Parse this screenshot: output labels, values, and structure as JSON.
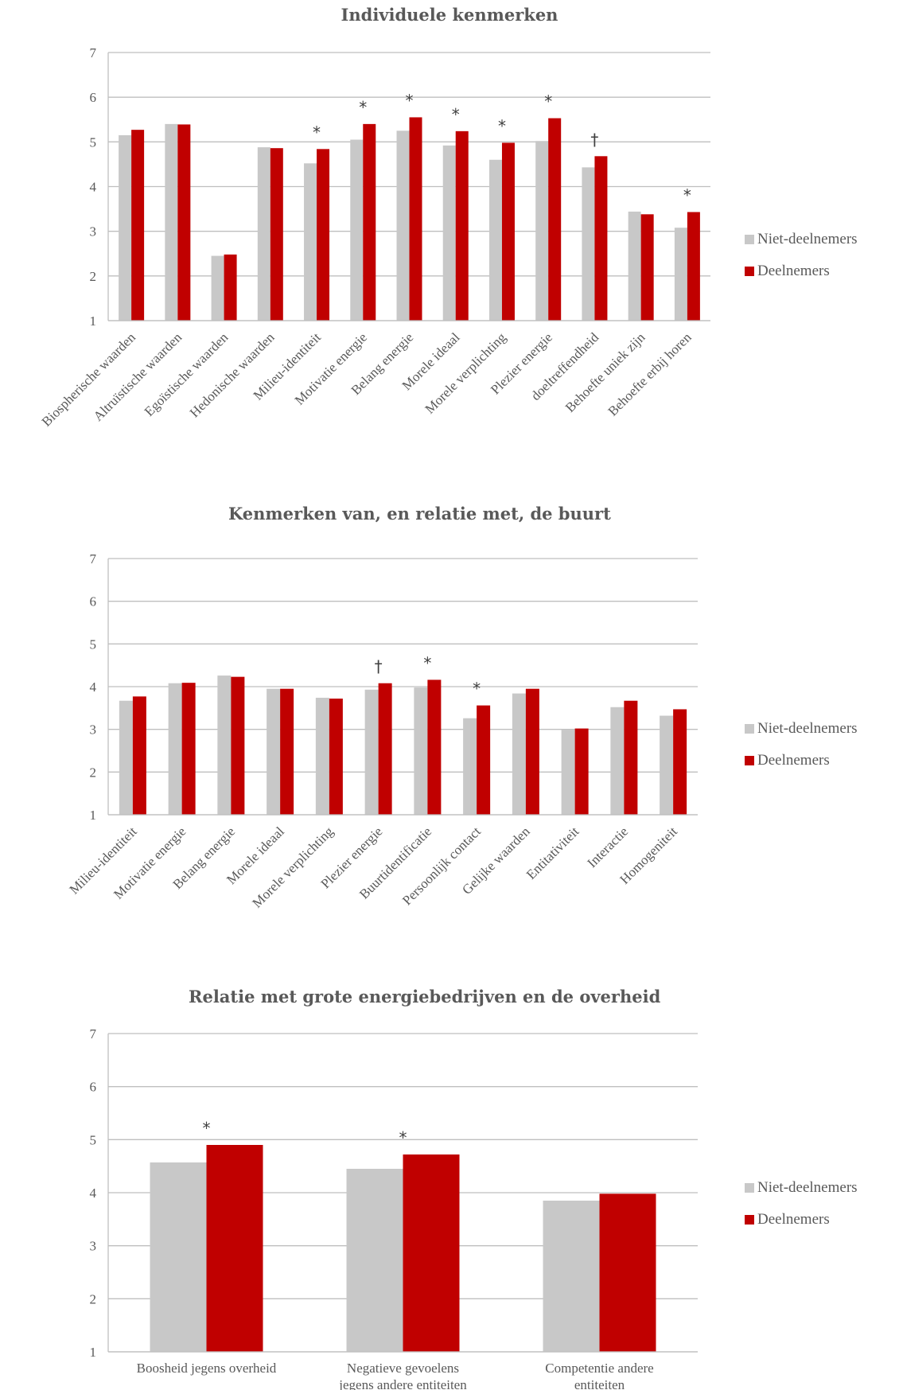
{
  "colors": {
    "non": "#c8c8c8",
    "part": "#c00000",
    "grid": "#bfbfbf"
  },
  "legend": {
    "non": "Niet-deelnemers",
    "part": "Deelnemers"
  },
  "chart_data": [
    {
      "type": "bar",
      "title": "Individuele kenmerken",
      "ylim": [
        1,
        7
      ],
      "yticks": [
        1,
        2,
        3,
        4,
        5,
        6,
        7
      ],
      "grid": true,
      "legend_position": "right",
      "categories": [
        "Biospherische waarden",
        "Altruïstische waarden",
        "Egoïstische waarden",
        "Hedonische waarden",
        "Milieu-identiteit",
        "Motivatie energie",
        "Belang energie",
        "Morele ideaal",
        "Morele verplichting",
        "Plezier energie",
        "doeltreffendheid",
        "Behoefte uniek zijn",
        "Behoefte erbij horen"
      ],
      "series": [
        {
          "name": "Niet-deelnemers",
          "values": [
            5.15,
            5.4,
            2.45,
            4.88,
            4.52,
            5.05,
            5.25,
            4.92,
            4.6,
            5.02,
            4.43,
            3.44,
            3.08
          ]
        },
        {
          "name": "Deelnemers",
          "values": [
            5.27,
            5.39,
            2.48,
            4.86,
            4.84,
            5.4,
            5.55,
            5.24,
            4.98,
            5.53,
            4.68,
            3.38,
            3.43
          ]
        }
      ],
      "annotations": [
        "",
        "",
        "",
        "",
        "*",
        "*",
        "*",
        "*",
        "*",
        "*",
        "†",
        "",
        "*"
      ]
    },
    {
      "type": "bar",
      "title": "Kenmerken van, en relatie met, de buurt",
      "ylim": [
        1,
        7
      ],
      "yticks": [
        1,
        2,
        3,
        4,
        5,
        6,
        7
      ],
      "grid": true,
      "legend_position": "right",
      "categories": [
        "Milieu-identiteit",
        "Motivatie energie",
        "Belang energie",
        "Morele ideaal",
        "Morele verplichting",
        "Plezier energie",
        "Buurtidentificatie",
        "Persoonlijk contact",
        "Gelijke waarden",
        "Entitativiteit",
        "Interactie",
        "Homogeniteit"
      ],
      "series": [
        {
          "name": "Niet-deelnemers",
          "values": [
            3.67,
            4.08,
            4.26,
            3.95,
            3.74,
            3.93,
            3.98,
            3.26,
            3.84,
            2.99,
            3.52,
            3.32
          ]
        },
        {
          "name": "Deelnemers",
          "values": [
            3.77,
            4.09,
            4.23,
            3.95,
            3.72,
            4.08,
            4.16,
            3.56,
            3.95,
            3.02,
            3.67,
            3.47
          ]
        }
      ],
      "annotations": [
        "",
        "",
        "",
        "",
        "",
        "†",
        "*",
        "*",
        "",
        "",
        "",
        ""
      ]
    },
    {
      "type": "bar",
      "title": "Relatie met grote energiebedrijven en de overheid",
      "ylim": [
        1,
        7
      ],
      "yticks": [
        1,
        2,
        3,
        4,
        5,
        6,
        7
      ],
      "grid": true,
      "legend_position": "right",
      "categories": [
        [
          "Boosheid jegens overheid"
        ],
        [
          "Negatieve gevoelens",
          "jegens andere entiteiten"
        ],
        [
          "Competentie andere",
          "entiteiten"
        ]
      ],
      "series": [
        {
          "name": "Niet-deelnemers",
          "values": [
            4.57,
            4.45,
            3.85
          ]
        },
        {
          "name": "Deelnemers",
          "values": [
            4.9,
            4.72,
            3.98
          ]
        }
      ],
      "annotations": [
        "*",
        "*",
        ""
      ]
    }
  ]
}
